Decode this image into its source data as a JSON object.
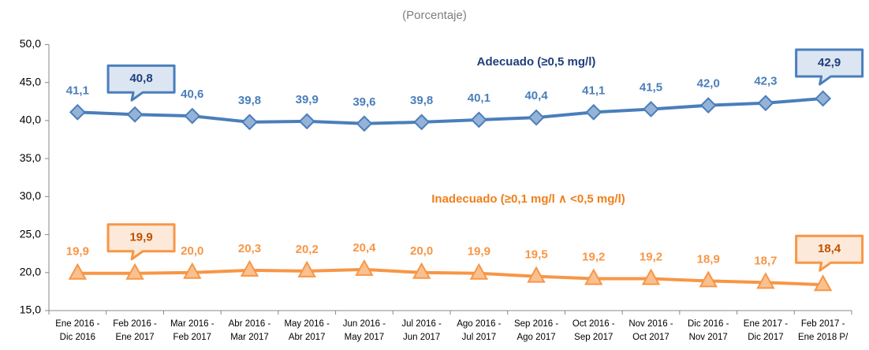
{
  "chart_data": {
    "type": "line",
    "subtitle": "(Porcentaje)",
    "categories": [
      [
        "Ene 2016 -",
        "Dic 2016"
      ],
      [
        "Feb 2016 -",
        "Ene 2017"
      ],
      [
        "Mar 2016 -",
        "Feb 2017"
      ],
      [
        "Abr 2016 -",
        "Mar 2017"
      ],
      [
        "May 2016 -",
        "Abr 2017"
      ],
      [
        "Jun 2016 -",
        "May 2017"
      ],
      [
        "Jul 2016 -",
        "Jun 2017"
      ],
      [
        "Ago 2016 -",
        "Jul 2017"
      ],
      [
        "Sep 2016 -",
        "Ago 2017"
      ],
      [
        "Oct 2016 -",
        "Sep 2017"
      ],
      [
        "Nov 2016 -",
        "Oct 2017"
      ],
      [
        "Dic 2016 -",
        "Nov 2017"
      ],
      [
        "Ene 2017 -",
        "Dic 2017"
      ],
      [
        "Feb 2017 -",
        "Ene 2018 P/"
      ]
    ],
    "ylim": [
      15,
      50
    ],
    "yticks": [
      {
        "value": 15,
        "label": "15,0"
      },
      {
        "value": 20,
        "label": "20,0"
      },
      {
        "value": 25,
        "label": "25,0"
      },
      {
        "value": 30,
        "label": "30,0"
      },
      {
        "value": 35,
        "label": "35,0"
      },
      {
        "value": 40,
        "label": "40,0"
      },
      {
        "value": 45,
        "label": "45,0"
      },
      {
        "value": 50,
        "label": "50,0"
      }
    ],
    "series": [
      {
        "name": "Adecuado (≥0,5 mg/l)",
        "color": "#4a7ebb",
        "marker": "diamond",
        "label_color": "#4a7ebb",
        "name_color": "#1f3f7a",
        "values": [
          41.1,
          40.8,
          40.6,
          39.8,
          39.9,
          39.6,
          39.8,
          40.1,
          40.4,
          41.1,
          41.5,
          42.0,
          42.3,
          42.9
        ],
        "value_labels": [
          "41,1",
          "40,8",
          "40,6",
          "39,8",
          "39,9",
          "39,6",
          "39,8",
          "40,1",
          "40,4",
          "41,1",
          "41,5",
          "42,0",
          "42,3",
          "42,9"
        ],
        "callout_points": [
          1,
          13
        ],
        "callout_fill": "#dce6f2",
        "callout_text": "#1f3f7a"
      },
      {
        "name": "Inadecuado (≥0,1 mg/l ∧ <0,5 mg/l)",
        "color": "#f79646",
        "marker": "triangle",
        "label_color": "#f79646",
        "name_color": "#f07f1a",
        "values": [
          19.9,
          19.9,
          20.0,
          20.3,
          20.2,
          20.4,
          20.0,
          19.9,
          19.5,
          19.2,
          19.2,
          18.9,
          18.7,
          18.4
        ],
        "value_labels": [
          "19,9",
          "19,9",
          "20,0",
          "20,3",
          "20,2",
          "20,4",
          "20,0",
          "19,9",
          "19,5",
          "19,2",
          "19,2",
          "18,9",
          "18,7",
          "18,4"
        ],
        "callout_points": [
          1,
          13
        ],
        "callout_fill": "#fde9d9",
        "callout_text": "#c05000"
      }
    ]
  }
}
